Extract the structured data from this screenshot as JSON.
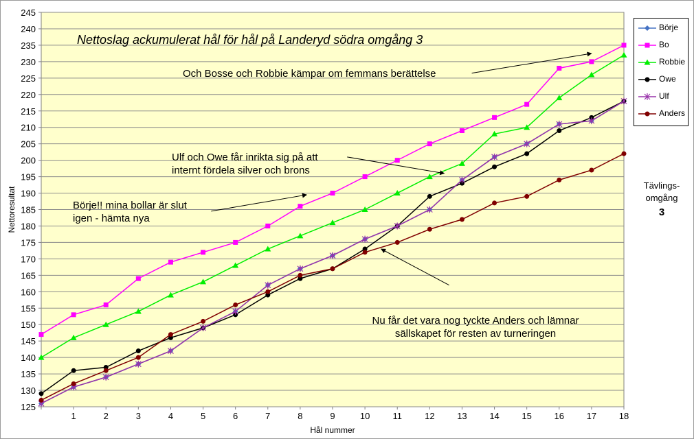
{
  "chart_data": {
    "type": "line",
    "title": "Nettoslag ackumulerat hål för hål på Landeryd södra omgång 3",
    "xlabel": "Hål nummer",
    "ylabel": "Nettoresultat",
    "x": [
      0,
      1,
      2,
      3,
      4,
      5,
      6,
      7,
      8,
      9,
      10,
      11,
      12,
      13,
      14,
      15,
      16,
      17,
      18
    ],
    "x_ticklabels": [
      "",
      "1",
      "2",
      "3",
      "4",
      "5",
      "6",
      "7",
      "8",
      "9",
      "10",
      "11",
      "12",
      "13",
      "14",
      "15",
      "16",
      "17",
      "18"
    ],
    "xlim": [
      0,
      18
    ],
    "ylim": [
      125,
      245
    ],
    "y_ticks": [
      125,
      130,
      135,
      140,
      145,
      150,
      155,
      160,
      165,
      170,
      175,
      180,
      185,
      190,
      195,
      200,
      205,
      210,
      215,
      220,
      225,
      230,
      235,
      240,
      245
    ],
    "grid": true,
    "legend_position": "right",
    "plot_background": "#ffffcc",
    "series": [
      {
        "name": "Börje",
        "color": "#4472c4",
        "marker": "diamond",
        "values": [
          126,
          131,
          134,
          138,
          142,
          149,
          154,
          162,
          167,
          171,
          176,
          180,
          185,
          194,
          201,
          205,
          211,
          212,
          218
        ]
      },
      {
        "name": "Bo",
        "color": "#ff00ff",
        "marker": "square",
        "values": [
          147,
          153,
          156,
          164,
          169,
          172,
          175,
          180,
          186,
          190,
          195,
          200,
          205,
          209,
          213,
          217,
          228,
          230,
          235
        ]
      },
      {
        "name": "Robbie",
        "color": "#00ee00",
        "marker": "triangle",
        "values": [
          140,
          146,
          150,
          154,
          159,
          163,
          168,
          173,
          177,
          181,
          185,
          190,
          195,
          199,
          208,
          210,
          219,
          226,
          232
        ]
      },
      {
        "name": "Owe",
        "color": "#000000",
        "marker": "circle",
        "values": [
          129,
          136,
          137,
          142,
          146,
          149,
          153,
          159,
          164,
          167,
          173,
          180,
          189,
          193,
          198,
          202,
          209,
          213,
          218
        ]
      },
      {
        "name": "Ulf",
        "color": "#9933aa",
        "marker": "star",
        "values": [
          126,
          131,
          134,
          138,
          142,
          149,
          154,
          162,
          167,
          171,
          176,
          180,
          185,
          194,
          201,
          205,
          211,
          212,
          218
        ]
      },
      {
        "name": "Anders",
        "color": "#800000",
        "marker": "circle",
        "values": [
          127,
          132,
          136,
          140,
          147,
          151,
          156,
          160,
          165,
          167,
          172,
          175,
          179,
          182,
          187,
          189,
          194,
          197,
          202
        ]
      }
    ],
    "annotations": [
      {
        "id": "bosse",
        "lines": [
          "Och Bosse och Robbie kämpar om femmans berättelse"
        ],
        "arrow_from": [
          13.3,
          226.5
        ],
        "arrow_to": [
          17.0,
          232.5
        ]
      },
      {
        "id": "ulf",
        "lines": [
          "Ulf och Owe får inrikta sig på att",
          "internt fördela silver och brons"
        ],
        "arrow_from": [
          9.45,
          201.0
        ],
        "arrow_to": [
          12.45,
          196.0
        ]
      },
      {
        "id": "borje",
        "lines": [
          "Börje!! mina bollar är slut",
          "igen - hämta nya"
        ],
        "arrow_from": [
          5.25,
          184.5
        ],
        "arrow_to": [
          8.2,
          189.5
        ]
      },
      {
        "id": "anders",
        "lines": [
          "Nu får det vara nog tyckte Anders och lämnar",
          "sällskapet för resten av turneringen"
        ],
        "arrow_from": [
          12.6,
          162.0
        ],
        "arrow_to": [
          10.5,
          173.0
        ]
      }
    ]
  },
  "side_note": {
    "label": "Tävlings-omgång",
    "value": "3"
  }
}
